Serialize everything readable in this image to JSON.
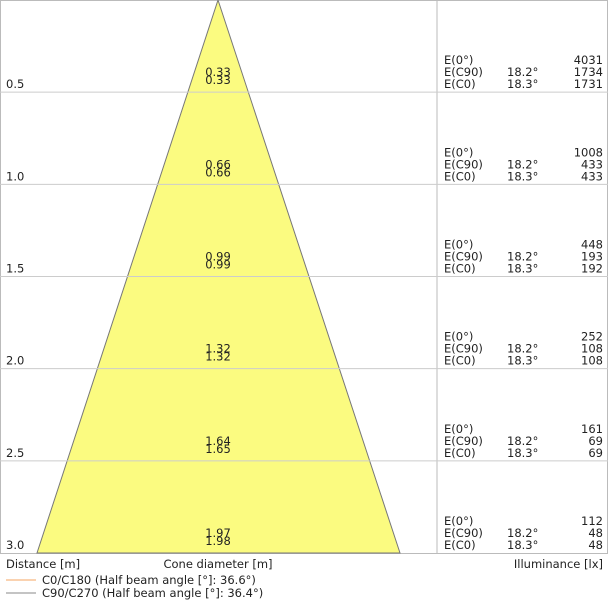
{
  "labels": {
    "e0": "E(0°)",
    "c90": "E(C90)",
    "c0": "E(C0)"
  },
  "rows": [
    {
      "distance": "0.5",
      "diameter": [
        "0.33",
        "0.33"
      ],
      "e0": "4031",
      "c90_angle": "18.2°",
      "c90": "1734",
      "c0_angle": "18.3°",
      "c0": "1731"
    },
    {
      "distance": "1.0",
      "diameter": [
        "0.66",
        "0.66"
      ],
      "e0": "1008",
      "c90_angle": "18.2°",
      "c90": "433",
      "c0_angle": "18.3°",
      "c0": "433"
    },
    {
      "distance": "1.5",
      "diameter": [
        "0.99",
        "0.99"
      ],
      "e0": "448",
      "c90_angle": "18.2°",
      "c90": "193",
      "c0_angle": "18.3°",
      "c0": "192"
    },
    {
      "distance": "2.0",
      "diameter": [
        "1.32",
        "1.32"
      ],
      "e0": "252",
      "c90_angle": "18.2°",
      "c90": "108",
      "c0_angle": "18.3°",
      "c0": "108"
    },
    {
      "distance": "2.5",
      "diameter": [
        "1.64",
        "1.65"
      ],
      "e0": "161",
      "c90_angle": "18.2°",
      "c90": "69",
      "c0_angle": "18.3°",
      "c0": "69"
    },
    {
      "distance": "3.0",
      "diameter": [
        "1.97",
        "1.98"
      ],
      "e0": "112",
      "c90_angle": "18.2°",
      "c90": "48",
      "c0_angle": "18.3°",
      "c0": "48"
    }
  ],
  "footer": {
    "distance": "Distance [m]",
    "diameter": "Cone diameter [m]",
    "illuminance": "Illuminance [lx]"
  },
  "legend": [
    {
      "label": "C0/C180 (Half beam angle [°]: 36.6°)",
      "color": "#f4a460"
    },
    {
      "label": "C90/C270 (Half beam angle [°]: 36.4°)",
      "color": "#888888"
    }
  ]
}
